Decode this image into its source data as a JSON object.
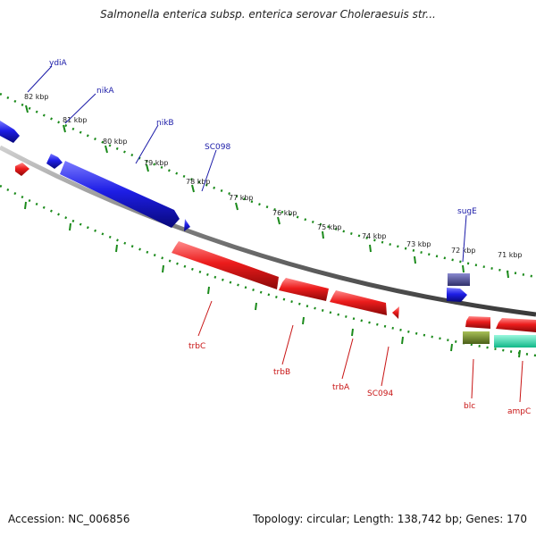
{
  "title": "Salmonella enterica subsp. enterica serovar Choleraesuis str...",
  "footer": {
    "accession_label": "Accession:",
    "accession": "NC_006856",
    "topology_text": "Topology: circular; Length: 138,742 bp; Genes: 170"
  },
  "colors": {
    "forward": "#1414dc",
    "reverse": "#e61414",
    "backbone": "#8c8c8c",
    "ruler": "#1a8a1a",
    "sugE_box": "#4a4a9a",
    "blc_box": "#6b8a2a",
    "ampC_box": "#28e0b0",
    "label_forward": "#1a1aa8",
    "label_reverse": "#c81414"
  },
  "kbp_ticks": [
    {
      "id": "82",
      "label": "82 kbp"
    },
    {
      "id": "81",
      "label": "81 kbp"
    },
    {
      "id": "80",
      "label": "80 kbp"
    },
    {
      "id": "79",
      "label": "79 kbp"
    },
    {
      "id": "78",
      "label": "78 kbp"
    },
    {
      "id": "77",
      "label": "77 kbp"
    },
    {
      "id": "76",
      "label": "76 kbp"
    },
    {
      "id": "75",
      "label": "75 kbp"
    },
    {
      "id": "74",
      "label": "74 kbp"
    },
    {
      "id": "73",
      "label": "73 kbp"
    },
    {
      "id": "72",
      "label": "72 kbp"
    },
    {
      "id": "71",
      "label": "71 kbp"
    }
  ],
  "genes": [
    {
      "id": "ydiA",
      "label": "ydiA",
      "strand": "forward"
    },
    {
      "id": "nikA",
      "label": "nikA",
      "strand": "forward"
    },
    {
      "id": "nikB",
      "label": "nikB",
      "strand": "forward"
    },
    {
      "id": "SC098",
      "label": "SC098",
      "strand": "forward"
    },
    {
      "id": "sugE",
      "label": "sugE",
      "strand": "forward"
    },
    {
      "id": "trbC",
      "label": "trbC",
      "strand": "reverse"
    },
    {
      "id": "trbB",
      "label": "trbB",
      "strand": "reverse"
    },
    {
      "id": "trbA",
      "label": "trbA",
      "strand": "reverse"
    },
    {
      "id": "SC094",
      "label": "SC094",
      "strand": "reverse"
    },
    {
      "id": "blc",
      "label": "blc",
      "strand": "reverse"
    },
    {
      "id": "ampC",
      "label": "ampC",
      "strand": "reverse"
    }
  ]
}
